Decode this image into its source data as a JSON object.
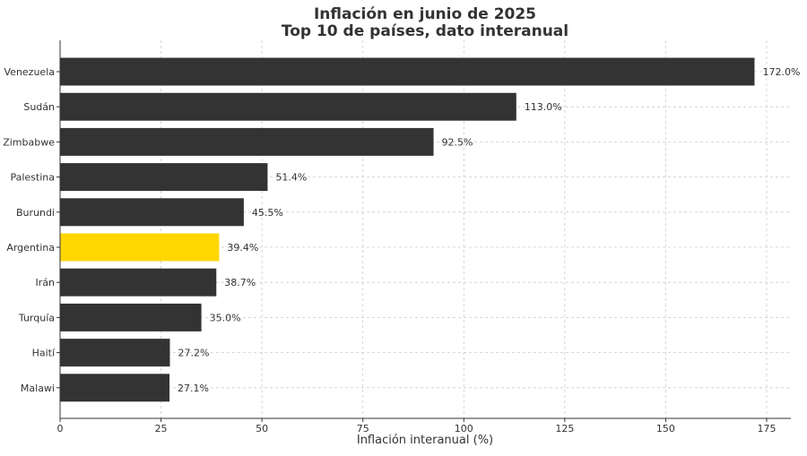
{
  "chart_data": {
    "type": "bar",
    "orientation": "horizontal",
    "title": "Inflación en junio de 2025",
    "subtitle": "Top 10 de países, dato interanual",
    "xlabel": "Inflación interanual (%)",
    "ylabel": "",
    "xlim": [
      0,
      181
    ],
    "xticks": [
      0,
      25,
      50,
      75,
      100,
      125,
      150,
      175
    ],
    "grid": true,
    "categories": [
      "Venezuela",
      "Sudán",
      "Zimbabwe",
      "Palestina",
      "Burundi",
      "Argentina",
      "Irán",
      "Turquía",
      "Haití",
      "Malawi"
    ],
    "values": [
      172.0,
      113.0,
      92.5,
      51.4,
      45.5,
      39.4,
      38.7,
      35.0,
      27.2,
      27.1
    ],
    "value_labels": [
      "172.0%",
      "113.0%",
      "92.5%",
      "51.4%",
      "45.5%",
      "39.4%",
      "38.7%",
      "35.0%",
      "27.2%",
      "27.1%"
    ],
    "highlight": "Argentina",
    "colors": {
      "default": "#333333",
      "highlight": "#ffd700",
      "text": "#333333",
      "grid": "#cccccc"
    }
  }
}
